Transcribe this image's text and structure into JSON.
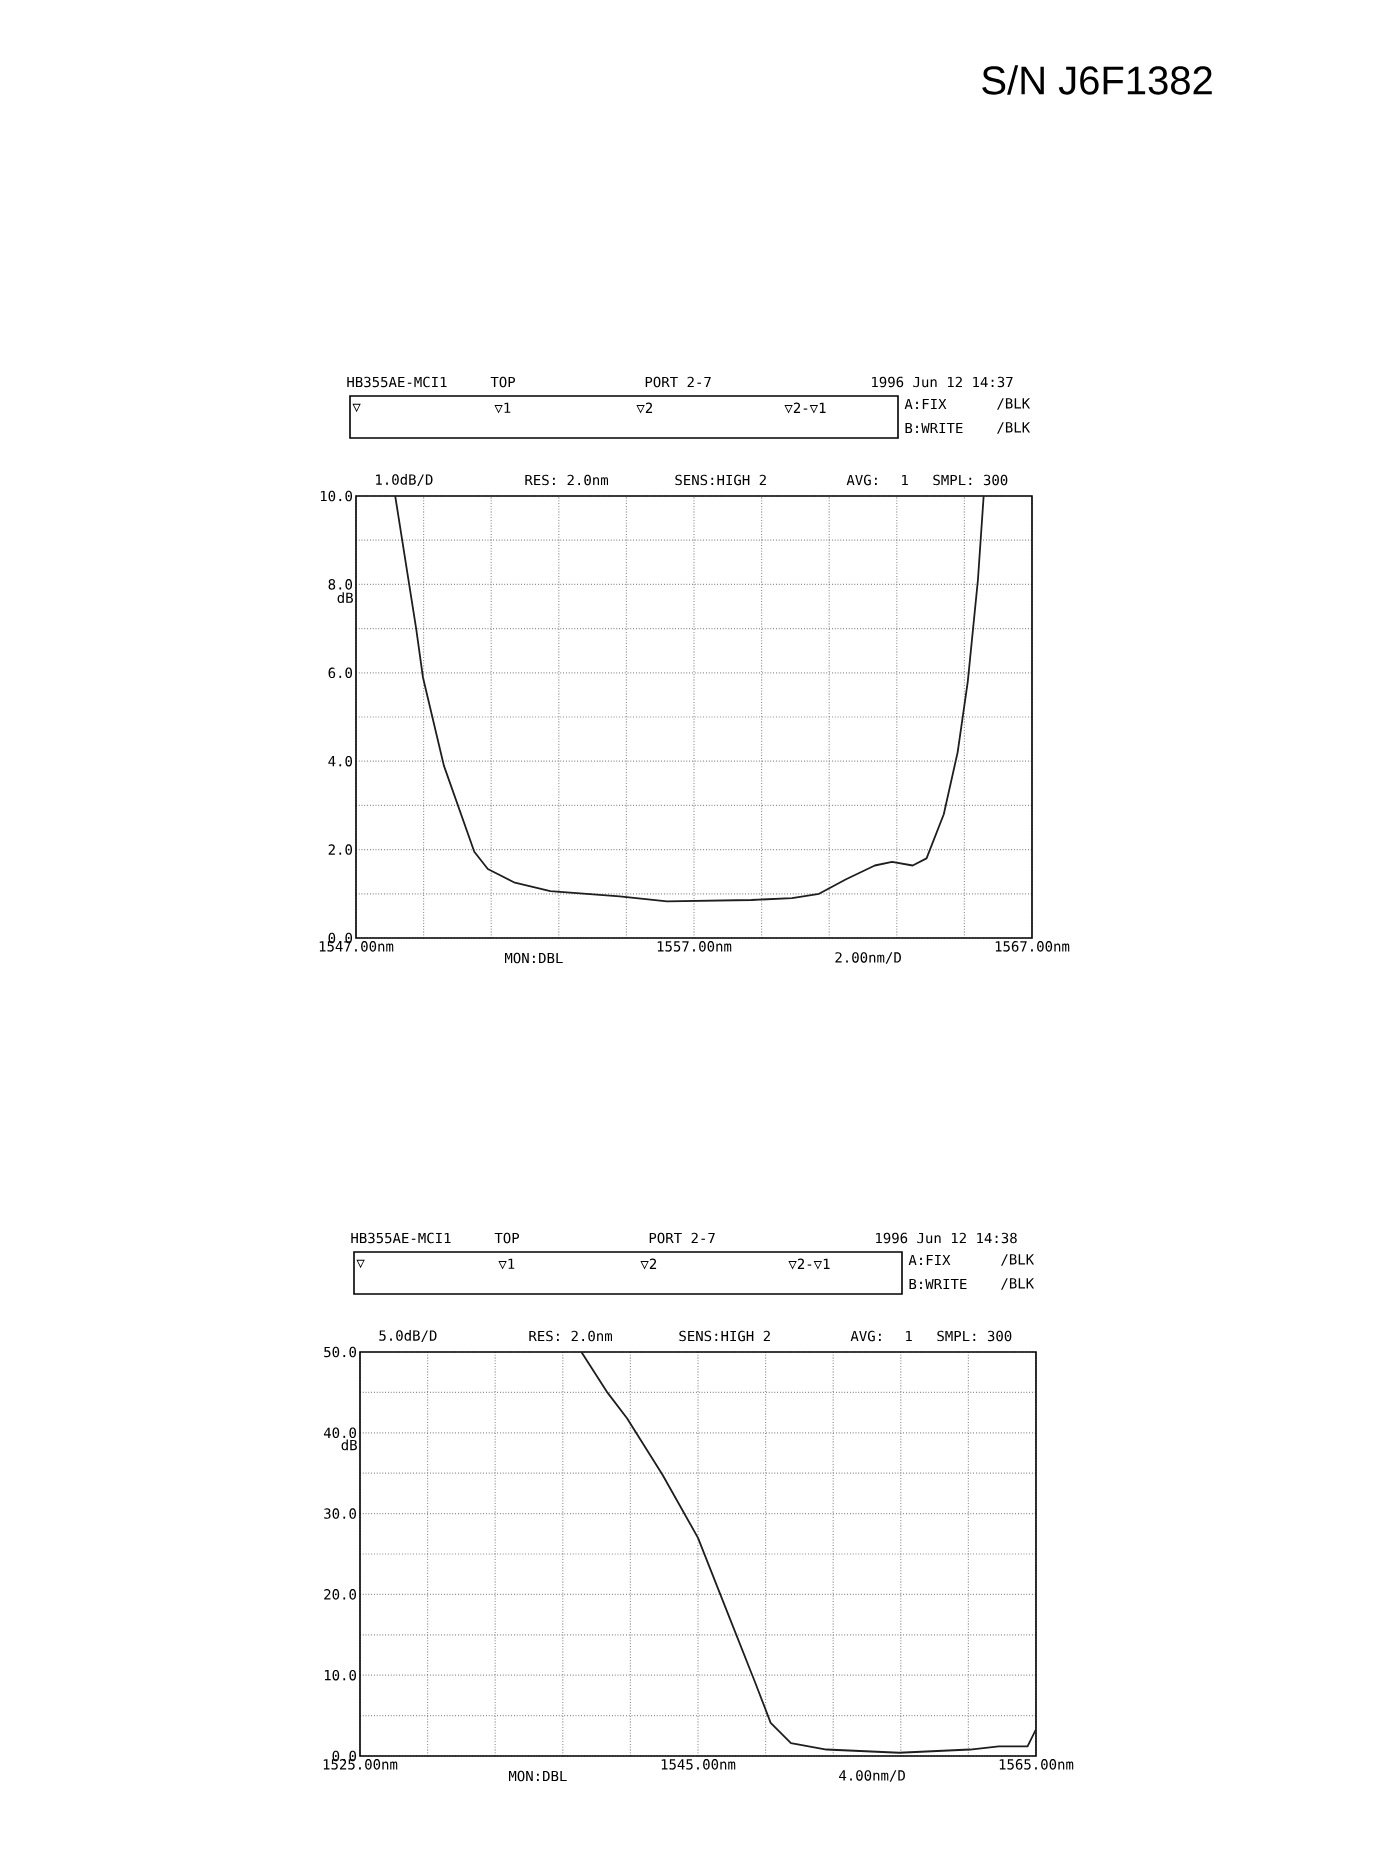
{
  "chart_data": [
    {
      "type": "line",
      "ylabel": "dB",
      "xlim": [
        1547,
        1567
      ],
      "ylim": [
        0,
        10
      ],
      "grid": true,
      "xticks": [
        {
          "value": 1547,
          "label": "1547.00nm"
        },
        {
          "value": 1549,
          "label": null
        },
        {
          "value": 1551,
          "label": null
        },
        {
          "value": 1553,
          "label": null
        },
        {
          "value": 1555,
          "label": null
        },
        {
          "value": 1557,
          "label": "1557.00nm"
        },
        {
          "value": 1559,
          "label": null
        },
        {
          "value": 1561,
          "label": null
        },
        {
          "value": 1563,
          "label": null
        },
        {
          "value": 1565,
          "label": null
        },
        {
          "value": 1567,
          "label": "1567.00nm"
        }
      ],
      "yticks": [
        {
          "value": 0,
          "label": "0.0"
        },
        {
          "value": 1,
          "label": null
        },
        {
          "value": 2,
          "label": "2.0"
        },
        {
          "value": 3,
          "label": null
        },
        {
          "value": 4,
          "label": "4.0"
        },
        {
          "value": 5,
          "label": null
        },
        {
          "value": 6,
          "label": "6.0"
        },
        {
          "value": 7,
          "label": null
        },
        {
          "value": 8,
          "label": "8.0"
        },
        {
          "value": 9,
          "label": null
        },
        {
          "value": 10,
          "label": "10.0"
        }
      ],
      "series": [
        {
          "color": "#1e1e1e",
          "x": [
            1548.16,
            1548.78,
            1548.98,
            1549.6,
            1550.5,
            1550.9,
            1551.7,
            1552.75,
            1554.8,
            1556.2,
            1558.7,
            1559.9,
            1560.7,
            1561.5,
            1562.35,
            1562.86,
            1563.47,
            1563.88,
            1564.39,
            1564.8,
            1565.1,
            1565.4,
            1565.57
          ],
          "values": [
            10,
            7.0,
            5.9,
            3.9,
            1.95,
            1.56,
            1.25,
            1.06,
            0.94,
            0.83,
            0.86,
            0.9,
            1.0,
            1.33,
            1.64,
            1.72,
            1.64,
            1.8,
            2.8,
            4.2,
            5.8,
            8.1,
            10
          ]
        }
      ],
      "annotations": [
        "HB355AE-MCI1",
        "TOP",
        "PORT  2-7",
        "1996 Jun 12 14:37",
        "▽",
        "▽1",
        "▽2",
        "▽2-▽1",
        "A:FIX",
        "/BLK",
        "B:WRITE",
        "/BLK",
        "1.0dB/D",
        "RES: 2.0nm",
        "SENS:HIGH 2",
        "AVG:",
        "1",
        "SMPL: 300",
        "MON:DBL",
        "2.00nm/D",
        "S/N  J6F1382"
      ]
    },
    {
      "type": "line",
      "ylabel": "dB",
      "xlim": [
        1525,
        1565
      ],
      "ylim": [
        0,
        50
      ],
      "grid": true,
      "xticks": [
        {
          "value": 1525,
          "label": "1525.00nm"
        },
        {
          "value": 1529,
          "label": null
        },
        {
          "value": 1533,
          "label": null
        },
        {
          "value": 1537,
          "label": null
        },
        {
          "value": 1541,
          "label": null
        },
        {
          "value": 1545,
          "label": "1545.00nm"
        },
        {
          "value": 1549,
          "label": null
        },
        {
          "value": 1553,
          "label": null
        },
        {
          "value": 1557,
          "label": null
        },
        {
          "value": 1561,
          "label": null
        },
        {
          "value": 1565,
          "label": "1565.00nm"
        }
      ],
      "yticks": [
        {
          "value": 0,
          "label": "0.0"
        },
        {
          "value": 5,
          "label": null
        },
        {
          "value": 10,
          "label": "10.0"
        },
        {
          "value": 15,
          "label": null
        },
        {
          "value": 20,
          "label": "20.0"
        },
        {
          "value": 25,
          "label": null
        },
        {
          "value": 30,
          "label": "30.0"
        },
        {
          "value": 35,
          "label": null
        },
        {
          "value": 40,
          "label": "40.0"
        },
        {
          "value": 45,
          "label": null
        },
        {
          "value": 50,
          "label": "50.0"
        }
      ],
      "series": [
        {
          "color": "#1e1e1e",
          "x": [
            1538.1,
            1539.6,
            1540.8,
            1542.9,
            1545.0,
            1546.7,
            1548.4,
            1549.3,
            1550.5,
            1552.6,
            1556.9,
            1561.1,
            1562.8,
            1564.5,
            1565
          ],
          "values": [
            50,
            45.1,
            41.8,
            34.8,
            27.0,
            18.0,
            9.0,
            4.1,
            1.6,
            0.8,
            0.4,
            0.8,
            1.2,
            1.2,
            3.3
          ]
        }
      ],
      "annotations": [
        "HB355AE-MCI1",
        "TOP",
        "PORT  2-7",
        "1996 Jun 12 14:38",
        "▽",
        "▽1",
        "▽2",
        "▽2-▽1",
        "A:FIX",
        "/BLK",
        "B:WRITE",
        "/BLK",
        "5.0dB/D",
        "RES: 2.0nm",
        "SENS:HIGH 2",
        "AVG:",
        "1",
        "SMPL: 300",
        "MON:DBL",
        "4.00nm/D"
      ]
    }
  ]
}
